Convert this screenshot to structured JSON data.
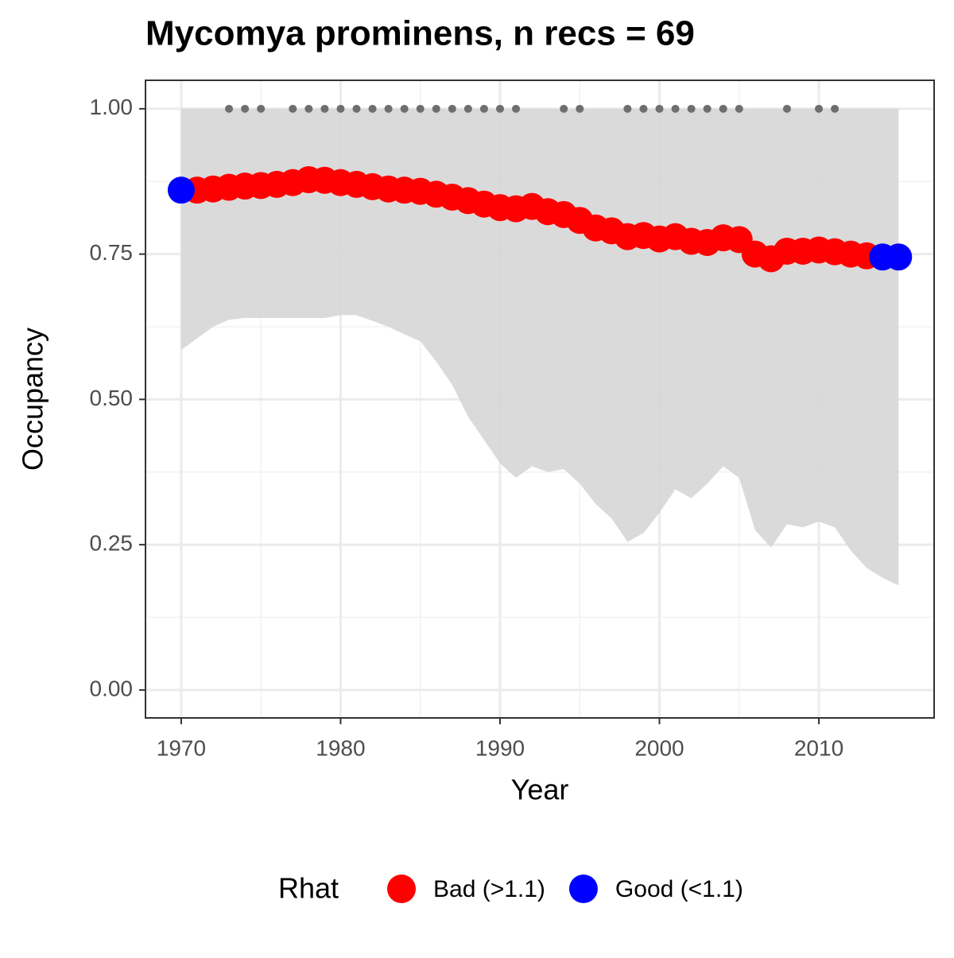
{
  "chart_data": {
    "type": "scatter",
    "title": "Mycomya prominens, n recs = 69",
    "x_label": "Year",
    "y_label": "Occupancy",
    "legend_title": "Rhat",
    "legend": "bottom",
    "grid": true,
    "x": [
      1970,
      1971,
      1972,
      1973,
      1974,
      1975,
      1976,
      1977,
      1978,
      1979,
      1980,
      1981,
      1982,
      1983,
      1984,
      1985,
      1986,
      1987,
      1988,
      1989,
      1990,
      1991,
      1992,
      1993,
      1994,
      1995,
      1996,
      1997,
      1998,
      1999,
      2000,
      2001,
      2002,
      2003,
      2004,
      2005,
      2006,
      2007,
      2008,
      2009,
      2010,
      2011,
      2012,
      2013,
      2014,
      2015
    ],
    "ci": {
      "color": "#d6d6d6",
      "lower": [
        0.585,
        0.605,
        0.625,
        0.637,
        0.64,
        0.64,
        0.64,
        0.64,
        0.64,
        0.64,
        0.645,
        0.645,
        0.635,
        0.625,
        0.612,
        0.6,
        0.565,
        0.525,
        0.47,
        0.43,
        0.39,
        0.365,
        0.385,
        0.375,
        0.38,
        0.355,
        0.32,
        0.295,
        0.255,
        0.27,
        0.305,
        0.345,
        0.33,
        0.355,
        0.385,
        0.365,
        0.275,
        0.245,
        0.285,
        0.28,
        0.29,
        0.28,
        0.24,
        0.21,
        0.193,
        0.18
      ],
      "upper": [
        1,
        1,
        1,
        1,
        1,
        1,
        1,
        1,
        1,
        1,
        1,
        1,
        1,
        1,
        1,
        1,
        1,
        1,
        1,
        1,
        1,
        1,
        1,
        1,
        1,
        1,
        1,
        1,
        1,
        1,
        1,
        1,
        1,
        1,
        1,
        1,
        1,
        1,
        1,
        1,
        1,
        1,
        1,
        1,
        1,
        1
      ]
    },
    "series": [
      {
        "name": "Bad (>1.1)",
        "color": "#ff0000",
        "values": [
          null,
          0.86,
          0.862,
          0.865,
          0.867,
          0.868,
          0.87,
          0.873,
          0.878,
          0.877,
          0.873,
          0.87,
          0.866,
          0.862,
          0.86,
          0.858,
          0.853,
          0.848,
          0.842,
          0.836,
          0.83,
          0.828,
          0.832,
          0.823,
          0.818,
          0.808,
          0.795,
          0.79,
          0.78,
          0.782,
          0.776,
          0.78,
          0.772,
          0.77,
          0.778,
          0.775,
          0.75,
          0.742,
          0.755,
          0.755,
          0.757,
          0.754,
          0.75,
          0.747,
          null,
          null
        ]
      },
      {
        "name": "Good (<1.1)",
        "color": "#0000ff",
        "values": [
          0.86,
          null,
          null,
          null,
          null,
          null,
          null,
          null,
          null,
          null,
          null,
          null,
          null,
          null,
          null,
          null,
          null,
          null,
          null,
          null,
          null,
          null,
          null,
          null,
          null,
          null,
          null,
          null,
          null,
          null,
          null,
          null,
          null,
          null,
          null,
          null,
          null,
          null,
          null,
          null,
          null,
          null,
          null,
          null,
          0.745,
          0.745
        ]
      }
    ],
    "records": {
      "color": "#6e6e6e",
      "x": [
        1973,
        1974,
        1975,
        1977,
        1978,
        1979,
        1980,
        1981,
        1982,
        1983,
        1984,
        1985,
        1986,
        1987,
        1988,
        1989,
        1990,
        1991,
        1994,
        1995,
        1998,
        1999,
        2000,
        2001,
        2002,
        2003,
        2004,
        2005,
        2008,
        2010,
        2011
      ],
      "values": [
        1,
        1,
        1,
        1,
        1,
        1,
        1,
        1,
        1,
        1,
        1,
        1,
        1,
        1,
        1,
        1,
        1,
        1,
        1,
        1,
        1,
        1,
        1,
        1,
        1,
        1,
        1,
        1,
        1,
        1,
        1
      ]
    },
    "xlim": [
      1967.76,
      2017.23
    ],
    "ylim": [
      -0.048,
      1.049
    ],
    "xticks": [
      1970,
      1980,
      1990,
      2000,
      2010
    ],
    "yticks": [
      {
        "value": 0,
        "label": "0.00"
      },
      {
        "value": 0.25,
        "label": "0.25"
      },
      {
        "value": 0.5,
        "label": "0.50"
      },
      {
        "value": 0.75,
        "label": "0.75"
      },
      {
        "value": 1,
        "label": "1.00"
      }
    ]
  }
}
